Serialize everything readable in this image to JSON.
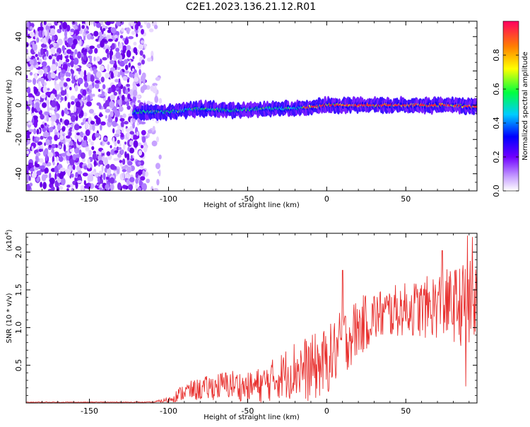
{
  "title": "C2E1.2023.136.21.12.R01",
  "colors": {
    "snr_line": "#e8312f",
    "axis": "#000000",
    "background": "#ffffff"
  },
  "chart_data": [
    {
      "type": "heatmap",
      "name": "spectrogram",
      "xlabel": "Height of straight line (km)",
      "ylabel": "Frequency (Hz)",
      "xlim": [
        -190,
        95
      ],
      "ylim": [
        -50,
        49
      ],
      "xticks": [
        -150,
        -100,
        -50,
        0,
        50
      ],
      "yticks": [
        -40,
        -20,
        0,
        20,
        40
      ],
      "description_of_content": "noise scatter for heights below -105 km; a narrow signal trace near 0 Hz from -120 km to 95 km, strongest near 0 Hz above -15 km",
      "trace_center_hz": [
        {
          "x": -120,
          "y": -4
        },
        {
          "x": -100,
          "y": -4
        },
        {
          "x": -80,
          "y": -2
        },
        {
          "x": -60,
          "y": -3
        },
        {
          "x": -40,
          "y": -2
        },
        {
          "x": -20,
          "y": -2
        },
        {
          "x": -10,
          "y": -1
        },
        {
          "x": 0,
          "y": 0
        },
        {
          "x": 20,
          "y": 0
        },
        {
          "x": 40,
          "y": 0
        },
        {
          "x": 60,
          "y": 0
        },
        {
          "x": 80,
          "y": 0
        },
        {
          "x": 95,
          "y": -1
        }
      ],
      "colorbar": {
        "label": "Normalized spectral amplitude",
        "range": [
          0.0,
          1.0
        ],
        "ticks": [
          0.0,
          0.2,
          0.4,
          0.6,
          0.8
        ],
        "tick_labels": [
          "0.0",
          "0.2",
          "0.4",
          "0.6",
          "0.8"
        ],
        "colormap": [
          "#ffffff",
          "#7000ff",
          "#0000ff",
          "#00ccff",
          "#00ff40",
          "#ffff00",
          "#ff8000",
          "#ff0040"
        ]
      }
    },
    {
      "type": "line",
      "name": "snr",
      "xlabel": "Height of straight line (km)",
      "ylabel": "SNR (10 * v/v)",
      "y_multiplier": "(x10",
      "y_multiplier_exp": "4",
      "y_multiplier_close": ")",
      "xlim": [
        -190,
        95
      ],
      "ylim": [
        0,
        2.25
      ],
      "xticks": [
        -150,
        -100,
        -50,
        0,
        50
      ],
      "yticks": [
        0.5,
        1.0,
        1.5,
        2.0
      ],
      "ytick_labels": [
        "0.5",
        "1.0",
        "1.5",
        "2.0"
      ],
      "envelope": {
        "x": [
          -190,
          -110,
          -100,
          -90,
          -80,
          -70,
          -60,
          -50,
          -40,
          -30,
          -20,
          -10,
          0,
          10,
          20,
          30,
          40,
          50,
          60,
          70,
          80,
          90,
          95
        ],
        "mean": [
          0.01,
          0.01,
          0.04,
          0.15,
          0.18,
          0.22,
          0.25,
          0.2,
          0.25,
          0.35,
          0.45,
          0.45,
          0.55,
          0.8,
          1.0,
          1.15,
          1.2,
          1.25,
          1.25,
          1.3,
          1.3,
          1.3,
          1.3
        ],
        "spread": [
          0.005,
          0.005,
          0.04,
          0.12,
          0.15,
          0.18,
          0.2,
          0.2,
          0.25,
          0.3,
          0.4,
          0.45,
          0.45,
          0.45,
          0.4,
          0.35,
          0.35,
          0.35,
          0.4,
          0.45,
          0.5,
          0.6,
          0.6
        ]
      },
      "peaks": [
        {
          "x": 10,
          "y": 1.76
        },
        {
          "x": 73,
          "y": 2.02
        },
        {
          "x": 89,
          "y": 2.22
        },
        {
          "x": 92,
          "y": 2.2
        },
        {
          "x": 88,
          "y": 0.22
        }
      ]
    }
  ]
}
